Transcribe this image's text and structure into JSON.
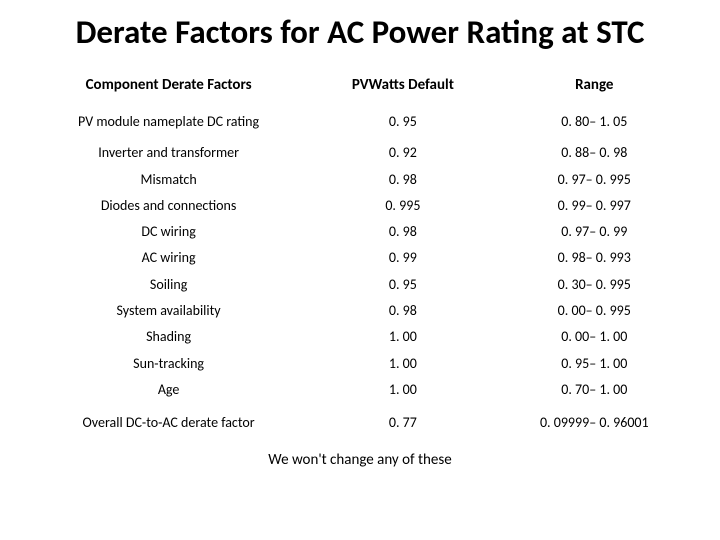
{
  "title": "Derate Factors for AC Power Rating at STC",
  "columns": [
    "Component Derate Factors",
    "PVWatts Default",
    "Range"
  ],
  "sections": [
    {
      "rows": [
        {
          "component": "PV module nameplate DC rating",
          "default": "0. 95",
          "range": "0. 80– 1. 05"
        }
      ]
    },
    {
      "rows": [
        {
          "component": "Inverter and transformer",
          "default": "0. 92",
          "range": "0. 88– 0. 98"
        },
        {
          "component": "Mismatch",
          "default": "0. 98",
          "range": "0. 97– 0. 995"
        },
        {
          "component": "Diodes and connections",
          "default": "0. 995",
          "range": "0. 99– 0. 997"
        },
        {
          "component": "DC wiring",
          "default": "0. 98",
          "range": "0. 97– 0. 99"
        },
        {
          "component": "AC wiring",
          "default": "0. 99",
          "range": "0. 98– 0. 993"
        },
        {
          "component": "Soiling",
          "default": "0. 95",
          "range": "0. 30– 0. 995"
        },
        {
          "component": "System availability",
          "default": "0. 98",
          "range": "0. 00– 0. 995"
        },
        {
          "component": "Shading",
          "default": "1. 00",
          "range": "0. 00– 1. 00"
        },
        {
          "component": "Sun-tracking",
          "default": "1. 00",
          "range": "0. 95– 1. 00"
        },
        {
          "component": "Age",
          "default": "1. 00",
          "range": "0. 70– 1. 00"
        }
      ]
    },
    {
      "rows": [
        {
          "component": "Overall DC-to-AC derate factor",
          "default": "0. 77",
          "range": "0. 09999– 0. 96001"
        }
      ]
    }
  ],
  "footnote": "We won't change any of these",
  "style": {
    "background": "#ffffff",
    "text_color": "#000000",
    "title_fontsize": 33,
    "header_fontsize": 15,
    "cell_fontsize": 14,
    "footnote_fontsize": 15,
    "font_family": "Calibri"
  }
}
